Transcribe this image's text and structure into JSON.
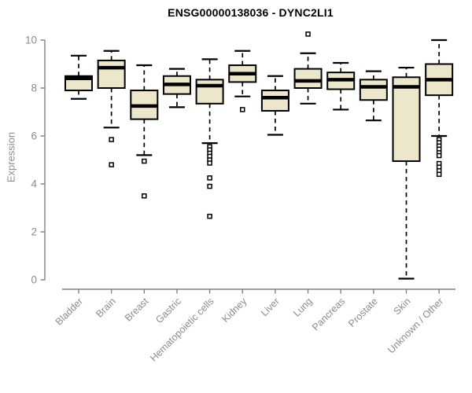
{
  "chart_data": {
    "type": "boxplot",
    "title": "ENSG00000138036 - DYNC2LI1",
    "ylabel": "Expression",
    "ylim": [
      0,
      10
    ],
    "yticks": [
      0,
      2,
      4,
      6,
      8,
      10
    ],
    "grid": false,
    "legend": "none",
    "categories": [
      "Bladder",
      "Brain",
      "Breast",
      "Gastric",
      "Hematopoietic cells",
      "Kidney",
      "Liver",
      "Lung",
      "Pancreas",
      "Prostate",
      "Skin",
      "Unknown / Other"
    ],
    "series": [
      {
        "name": "Bladder",
        "low": 7.55,
        "q1": 7.9,
        "median": 8.4,
        "q3": 8.5,
        "high": 9.35,
        "outliers": []
      },
      {
        "name": "Brain",
        "low": 6.35,
        "q1": 8.0,
        "median": 8.85,
        "q3": 9.15,
        "high": 9.55,
        "outliers": [
          5.85,
          4.8
        ]
      },
      {
        "name": "Breast",
        "low": 5.2,
        "q1": 6.7,
        "median": 7.25,
        "q3": 7.9,
        "high": 8.95,
        "outliers": [
          4.95,
          3.5
        ]
      },
      {
        "name": "Gastric",
        "low": 7.2,
        "q1": 7.75,
        "median": 8.15,
        "q3": 8.5,
        "high": 8.8,
        "outliers": []
      },
      {
        "name": "Hematopoietic cells",
        "low": 5.7,
        "q1": 7.35,
        "median": 8.1,
        "q3": 8.35,
        "high": 9.2,
        "outliers": [
          5.55,
          5.42,
          5.28,
          5.15,
          5.0,
          4.87,
          4.25,
          3.9,
          2.65
        ]
      },
      {
        "name": "Kidney",
        "low": 7.65,
        "q1": 8.25,
        "median": 8.6,
        "q3": 8.95,
        "high": 9.55,
        "outliers": [
          7.1
        ]
      },
      {
        "name": "Liver",
        "low": 6.05,
        "q1": 7.05,
        "median": 7.6,
        "q3": 7.9,
        "high": 8.5,
        "outliers": []
      },
      {
        "name": "Lung",
        "low": 7.35,
        "q1": 8.0,
        "median": 8.3,
        "q3": 8.8,
        "high": 9.45,
        "outliers": [
          10.25
        ]
      },
      {
        "name": "Pancreas",
        "low": 7.1,
        "q1": 7.95,
        "median": 8.35,
        "q3": 8.65,
        "high": 9.05,
        "outliers": []
      },
      {
        "name": "Prostate",
        "low": 6.65,
        "q1": 7.5,
        "median": 8.05,
        "q3": 8.35,
        "high": 8.7,
        "outliers": []
      },
      {
        "name": "Skin",
        "low": 0.05,
        "q1": 4.95,
        "median": 8.05,
        "q3": 8.45,
        "high": 8.85,
        "outliers": []
      },
      {
        "name": "Unknown / Other",
        "low": 6.0,
        "q1": 7.7,
        "median": 8.35,
        "q3": 9.0,
        "high": 10.0,
        "outliers": [
          5.85,
          5.72,
          5.58,
          5.45,
          5.3,
          5.18,
          4.85,
          4.7,
          4.55,
          4.4
        ]
      }
    ],
    "colors": {
      "box_fill": "#ece6cb",
      "box_border": "#000000",
      "median": "#000000",
      "axis": "#808080",
      "tick_labels": "#8c8c8c",
      "title": "#000000",
      "background": "#ffffff"
    }
  }
}
